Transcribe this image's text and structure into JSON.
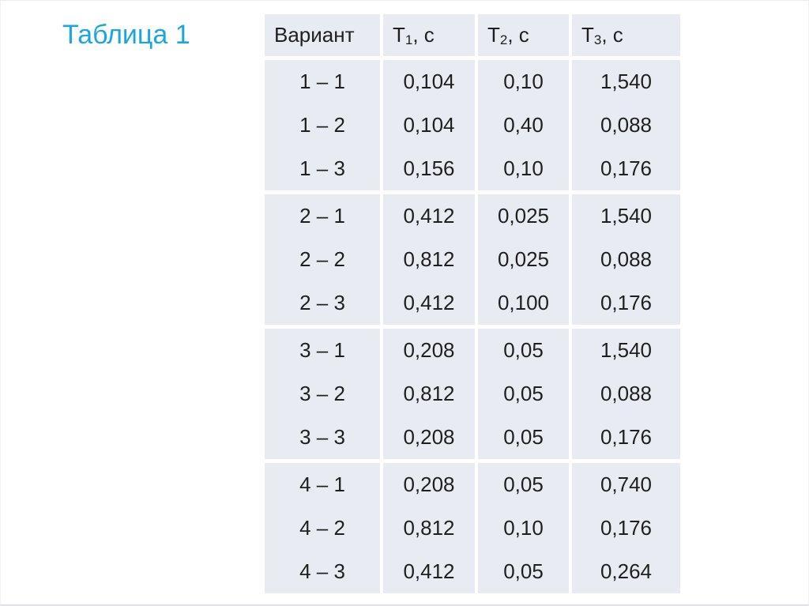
{
  "slide": {
    "title": "Таблица 1"
  },
  "colors": {
    "title_accent": "#1BA6E2",
    "cell_background": "#E8ECF2",
    "text": "#1F1F1F"
  },
  "table": {
    "headers": [
      {
        "base": "Вариант",
        "sub": "",
        "unit": ""
      },
      {
        "base": "Т",
        "sub": "1",
        "unit": ", с"
      },
      {
        "base": "Т",
        "sub": "2",
        "unit": ", с"
      },
      {
        "base": "Т",
        "sub": "3",
        "unit": ", с"
      }
    ],
    "groups": [
      {
        "rows": [
          {
            "cells": [
              "1 – 1",
              "0,104",
              "0,10",
              "1,540"
            ]
          },
          {
            "cells": [
              "1 – 2",
              "0,104",
              "0,40",
              "0,088"
            ]
          },
          {
            "cells": [
              "1 – 3",
              "0,156",
              "0,10",
              "0,176"
            ]
          }
        ]
      },
      {
        "rows": [
          {
            "cells": [
              "2 – 1",
              "0,412",
              "0,025",
              "1,540"
            ]
          },
          {
            "cells": [
              "2 – 2",
              "0,812",
              "0,025",
              "0,088"
            ]
          },
          {
            "cells": [
              "2 – 3",
              "0,412",
              "0,100",
              "0,176"
            ]
          }
        ]
      },
      {
        "rows": [
          {
            "cells": [
              "3 – 1",
              "0,208",
              "0,05",
              "1,540"
            ]
          },
          {
            "cells": [
              "3 – 2",
              "0,812",
              "0,05",
              "0,088"
            ]
          },
          {
            "cells": [
              "3 – 3",
              "0,208",
              "0,05",
              "0,176"
            ]
          }
        ]
      },
      {
        "rows": [
          {
            "cells": [
              "4 – 1",
              "0,208",
              "0,05",
              "0,740"
            ]
          },
          {
            "cells": [
              "4 – 2",
              "0,812",
              "0,10",
              "0,176"
            ]
          },
          {
            "cells": [
              "4 – 3",
              "0,412",
              "0,05",
              "0,264"
            ]
          }
        ]
      }
    ]
  }
}
